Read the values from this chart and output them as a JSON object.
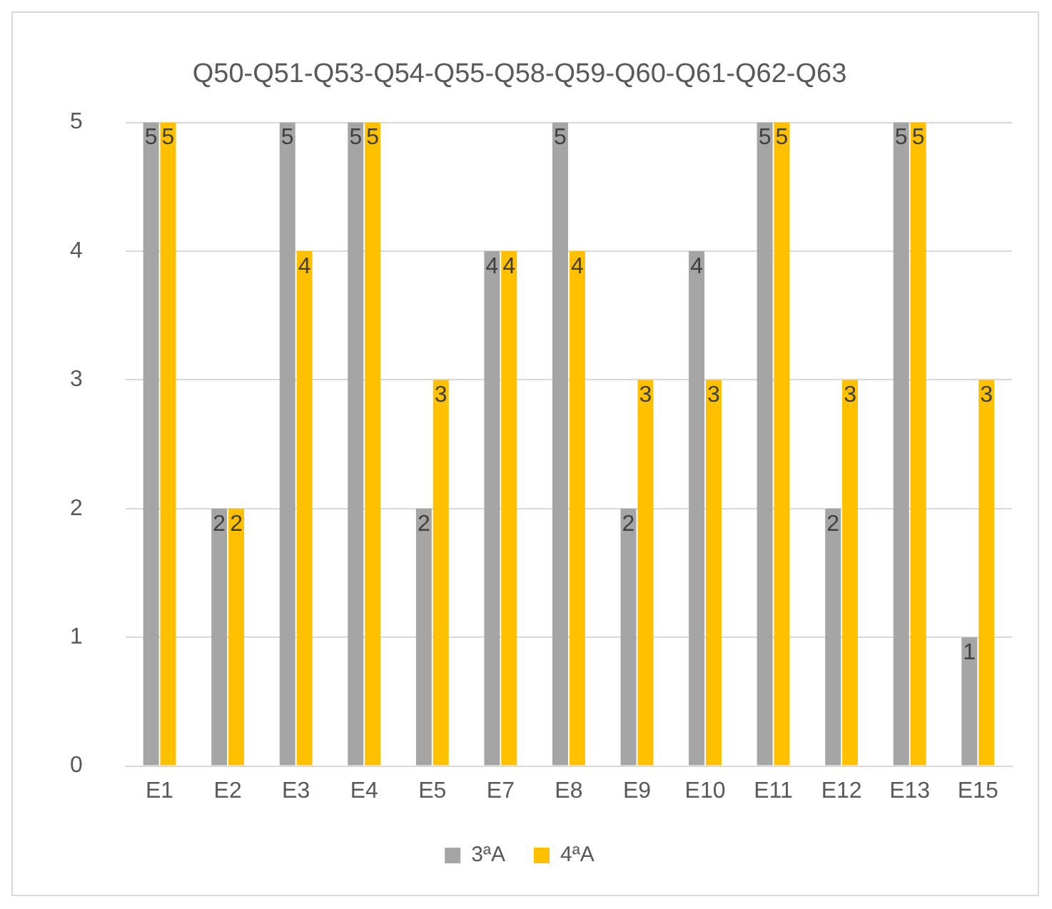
{
  "chart_data": {
    "type": "bar",
    "title": "Q50-Q51-Q53-Q54-Q55-Q58-Q59-Q60-Q61-Q62-Q63",
    "categories": [
      "E1",
      "E2",
      "E3",
      "E4",
      "E5",
      "E7",
      "E8",
      "E9",
      "E10",
      "E11",
      "E12",
      "E13",
      "E15"
    ],
    "series": [
      {
        "name": "3ªA",
        "color": "#a5a5a5",
        "values": [
          5,
          2,
          5,
          5,
          2,
          4,
          5,
          2,
          4,
          5,
          2,
          5,
          1
        ]
      },
      {
        "name": "4ªA",
        "color": "#ffc000",
        "values": [
          5,
          2,
          4,
          5,
          3,
          4,
          4,
          3,
          3,
          5,
          3,
          5,
          3
        ]
      }
    ],
    "ylim": [
      0,
      5
    ],
    "yticks": [
      0,
      1,
      2,
      3,
      4,
      5
    ],
    "grid": "y",
    "legend": "bottom",
    "data_labels": true
  }
}
